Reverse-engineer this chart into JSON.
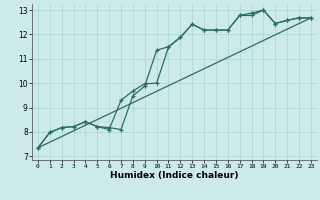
{
  "xlabel": "Humidex (Indice chaleur)",
  "bg_color": "#cceaea",
  "grid_color": "#aad4d4",
  "line_color": "#2a6e62",
  "xlim": [
    -0.5,
    23.5
  ],
  "ylim": [
    6.85,
    13.25
  ],
  "yticks": [
    7,
    8,
    9,
    10,
    11,
    12,
    13
  ],
  "xticks": [
    0,
    1,
    2,
    3,
    4,
    5,
    6,
    7,
    8,
    9,
    10,
    11,
    12,
    13,
    14,
    15,
    16,
    17,
    18,
    19,
    20,
    21,
    22,
    23
  ],
  "line1_x": [
    0,
    1,
    2,
    3,
    4,
    5,
    6,
    7,
    8,
    9,
    10,
    11,
    12,
    13,
    14,
    15,
    16,
    17,
    18,
    19,
    20,
    21,
    22,
    23
  ],
  "line1_y": [
    7.35,
    7.98,
    8.18,
    8.22,
    8.42,
    8.22,
    8.18,
    8.1,
    9.48,
    9.88,
    11.35,
    11.5,
    11.88,
    12.42,
    12.18,
    12.18,
    12.18,
    12.78,
    12.78,
    13.0,
    12.45,
    12.58,
    12.68,
    12.68
  ],
  "line2_x": [
    0,
    1,
    2,
    3,
    4,
    5,
    6,
    7,
    8,
    9,
    10,
    11,
    12,
    13,
    14,
    15,
    16,
    17,
    18,
    19,
    20,
    21,
    22,
    23
  ],
  "line2_y": [
    7.35,
    7.98,
    8.18,
    8.22,
    8.42,
    8.22,
    8.1,
    9.3,
    9.68,
    9.98,
    10.0,
    11.48,
    11.88,
    12.42,
    12.18,
    12.18,
    12.18,
    12.78,
    12.88,
    13.0,
    12.45,
    12.58,
    12.68,
    12.68
  ],
  "line3_x": [
    0,
    23
  ],
  "line3_y": [
    7.35,
    12.68
  ]
}
